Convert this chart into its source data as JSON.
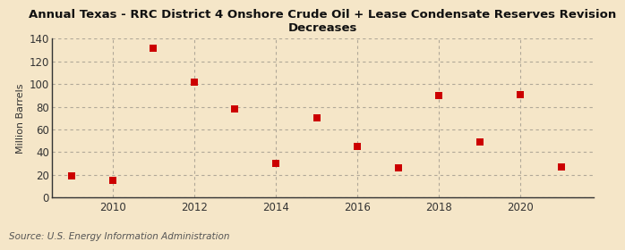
{
  "title": "Annual Texas - RRC District 4 Onshore Crude Oil + Lease Condensate Reserves Revision\nDecreases",
  "ylabel": "Million Barrels",
  "source": "Source: U.S. Energy Information Administration",
  "background_color": "#f5e6c8",
  "plot_bg_color": "#f5e6c8",
  "marker_color": "#cc0000",
  "marker_size": 6,
  "years": [
    2009,
    2010,
    2011,
    2012,
    2013,
    2014,
    2015,
    2016,
    2017,
    2018,
    2019,
    2020,
    2021
  ],
  "values": [
    19,
    15,
    132,
    102,
    78,
    30,
    70,
    45,
    26,
    90,
    49,
    91,
    27
  ],
  "ylim": [
    0,
    140
  ],
  "yticks": [
    0,
    20,
    40,
    60,
    80,
    100,
    120,
    140
  ],
  "xlim": [
    2008.5,
    2021.8
  ],
  "xticks": [
    2010,
    2012,
    2014,
    2016,
    2018,
    2020
  ],
  "grid_color": "#b0a898",
  "title_fontsize": 9.5,
  "axis_fontsize": 8.5,
  "source_fontsize": 7.5,
  "ylabel_fontsize": 8
}
